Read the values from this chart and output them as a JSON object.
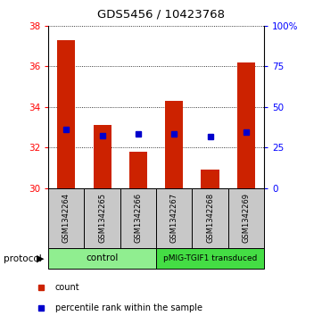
{
  "title": "GDS5456 / 10423768",
  "samples": [
    "GSM1342264",
    "GSM1342265",
    "GSM1342266",
    "GSM1342267",
    "GSM1342268",
    "GSM1342269"
  ],
  "count_values": [
    37.3,
    33.1,
    31.8,
    34.3,
    30.9,
    36.2
  ],
  "count_base": 30.0,
  "percentile_values": [
    32.9,
    32.6,
    32.65,
    32.65,
    32.55,
    32.75
  ],
  "ylim_left": [
    30,
    38
  ],
  "yticks_left": [
    30,
    32,
    34,
    36,
    38
  ],
  "ylim_right": [
    0,
    100
  ],
  "yticks_right": [
    0,
    25,
    50,
    75,
    100
  ],
  "ytick_labels_right": [
    "0",
    "25",
    "50",
    "75",
    "100%"
  ],
  "bar_color": "#CC2200",
  "dot_color": "#0000CC",
  "bar_width": 0.5,
  "control_color": "#90EE90",
  "pmig_color": "#44DD44",
  "label_bg": "#C8C8C8",
  "protocol_label": "protocol"
}
